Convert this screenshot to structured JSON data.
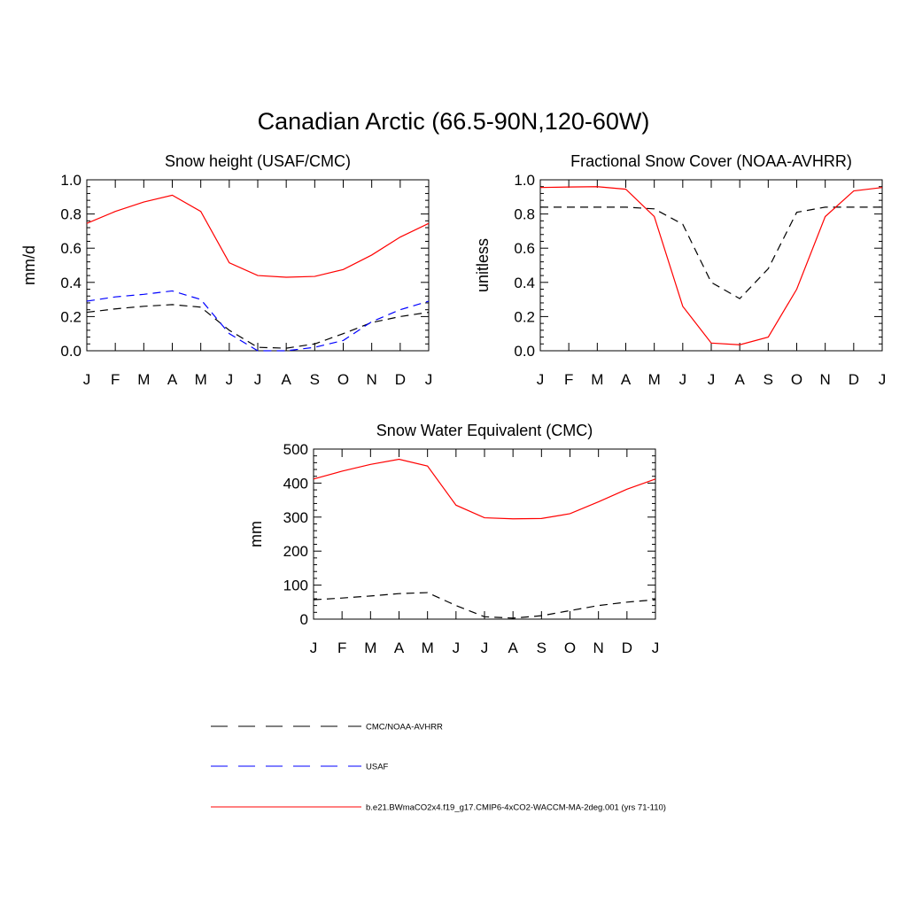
{
  "title": "Canadian Arctic (66.5-90N,120-60W)",
  "colors": {
    "obs": "#000000",
    "usaf": "#0000ff",
    "model": "#ff0000"
  },
  "legend": {
    "entries": [
      {
        "label": "CMC/NOAA-AVHRR",
        "color": "#000000",
        "dash": "dashed"
      },
      {
        "label": "USAF",
        "color": "#0000ff",
        "dash": "dashed"
      },
      {
        "label": "b.e21.BWmaCO2x4.f19_g17.CMIP6-4xCO2-WACCM-MA-2deg.001 (yrs 71-110)",
        "color": "#ff0000",
        "dash": "solid"
      }
    ]
  },
  "chart_data": [
    {
      "type": "line",
      "title": "Snow height (USAF/CMC)",
      "xlabel": "",
      "ylabel": "mm/d",
      "categories": [
        "J",
        "F",
        "M",
        "A",
        "M",
        "J",
        "J",
        "A",
        "S",
        "O",
        "N",
        "D",
        "J"
      ],
      "ylim": [
        0,
        1.0
      ],
      "yticks": [
        "0.0",
        "0.2",
        "0.4",
        "0.6",
        "0.8",
        "1.0"
      ],
      "series": [
        {
          "name": "CMC/NOAA-AVHRR",
          "color": "#000000",
          "dash": "dashed",
          "values": [
            0.225,
            0.245,
            0.26,
            0.27,
            0.255,
            0.12,
            0.02,
            0.015,
            0.04,
            0.1,
            0.165,
            0.2,
            0.225
          ]
        },
        {
          "name": "USAF",
          "color": "#0000ff",
          "dash": "dashed",
          "values": [
            0.29,
            0.315,
            0.33,
            0.35,
            0.3,
            0.1,
            0.0,
            0.0,
            0.02,
            0.06,
            0.17,
            0.24,
            0.29
          ]
        },
        {
          "name": "b.e21.BWmaCO2x4.f19_g17.CMIP6-4xCO2-WACCM-MA-2deg.001 (yrs 71-110)",
          "color": "#ff0000",
          "dash": "solid",
          "values": [
            0.745,
            0.815,
            0.87,
            0.91,
            0.815,
            0.515,
            0.44,
            0.43,
            0.435,
            0.475,
            0.56,
            0.665,
            0.745
          ]
        }
      ]
    },
    {
      "type": "line",
      "title": "Fractional Snow Cover (NOAA-AVHRR)",
      "xlabel": "",
      "ylabel": "unitless",
      "categories": [
        "J",
        "F",
        "M",
        "A",
        "M",
        "J",
        "J",
        "A",
        "S",
        "O",
        "N",
        "D",
        "J"
      ],
      "ylim": [
        0,
        1.0
      ],
      "yticks": [
        "0.0",
        "0.2",
        "0.4",
        "0.6",
        "0.8",
        "1.0"
      ],
      "series": [
        {
          "name": "CMC/NOAA-AVHRR",
          "color": "#000000",
          "dash": "dashed",
          "values": [
            0.84,
            0.84,
            0.84,
            0.84,
            0.83,
            0.74,
            0.4,
            0.305,
            0.48,
            0.81,
            0.84,
            0.84,
            0.84
          ]
        },
        {
          "name": "b.e21.BWmaCO2x4.f19_g17.CMIP6-4xCO2-WACCM-MA-2deg.001 (yrs 71-110)",
          "color": "#ff0000",
          "dash": "solid",
          "values": [
            0.955,
            0.958,
            0.96,
            0.945,
            0.785,
            0.26,
            0.045,
            0.035,
            0.08,
            0.36,
            0.785,
            0.935,
            0.955
          ]
        }
      ]
    },
    {
      "type": "line",
      "title": "Snow Water Equivalent (CMC)",
      "xlabel": "",
      "ylabel": "mm",
      "categories": [
        "J",
        "F",
        "M",
        "A",
        "M",
        "J",
        "J",
        "A",
        "S",
        "O",
        "N",
        "D",
        "J"
      ],
      "ylim": [
        0,
        500
      ],
      "yticks": [
        "0",
        "100",
        "200",
        "300",
        "400",
        "500"
      ],
      "series": [
        {
          "name": "CMC/NOAA-AVHRR",
          "color": "#000000",
          "dash": "dashed",
          "values": [
            57,
            62,
            68,
            75,
            78,
            40,
            7,
            3,
            10,
            25,
            40,
            50,
            57
          ]
        },
        {
          "name": "b.e21.BWmaCO2x4.f19_g17.CMIP6-4xCO2-WACCM-MA-2deg.001 (yrs 71-110)",
          "color": "#ff0000",
          "dash": "solid",
          "values": [
            412,
            435,
            455,
            470,
            450,
            335,
            298,
            295,
            296,
            310,
            345,
            382,
            412
          ]
        }
      ]
    }
  ]
}
